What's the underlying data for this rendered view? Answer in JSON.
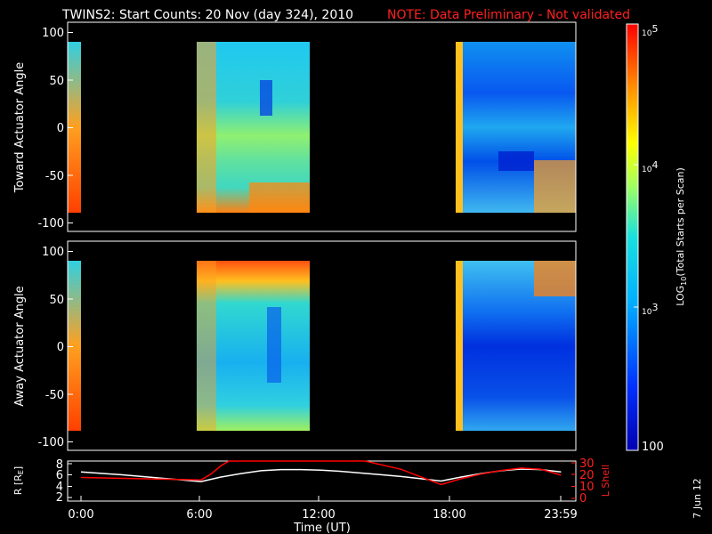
{
  "title": "TWINS2: Start Counts: 20 Nov (day 324), 2010",
  "note": "NOTE: Data Preliminary - Not validated",
  "date_stamp": "7 Jun 12",
  "chart_data": [
    {
      "name": "top-panel",
      "type": "heatmap",
      "ylabel": "Toward Actuator Angle",
      "ylim": [
        -110,
        110
      ],
      "yticks": [
        "100",
        "50",
        "0",
        "-50",
        "-100"
      ],
      "ytick_values": [
        100,
        50,
        0,
        -50,
        -100
      ],
      "angle_range": [
        -90,
        90
      ],
      "data_intervals_hours": [
        [
          0.0,
          0.03
        ],
        [
          6.0,
          11.8
        ],
        [
          18.0,
          24.0
        ]
      ],
      "colors": {
        "low": "#0000d0",
        "mid": "#18d8d8",
        "high": "#ff2800"
      }
    },
    {
      "name": "bottom-panel",
      "type": "heatmap",
      "ylabel": "Away Actuator Angle",
      "ylim": [
        -110,
        110
      ],
      "yticks": [
        "100",
        "50",
        "0",
        "-50",
        "-100"
      ],
      "ytick_values": [
        100,
        50,
        0,
        -50,
        -100
      ],
      "angle_range": [
        -90,
        90
      ],
      "data_intervals_hours": [
        [
          0.0,
          0.03
        ],
        [
          6.0,
          11.8
        ],
        [
          18.0,
          24.0
        ]
      ],
      "colors": {
        "low": "#0000d0",
        "mid": "#18d8d8",
        "high": "#ff2800"
      }
    },
    {
      "name": "orbit-panel",
      "type": "line",
      "ylabel_left_base": "R [R",
      "ylabel_left_sub": "E",
      "ylabel_left_end": "]",
      "ylabel_right": "L Shell",
      "yticks_left": [
        "8",
        "6",
        "4",
        "2"
      ],
      "ytick_left_values": [
        8,
        6,
        4,
        2
      ],
      "ylim_left": [
        1.5,
        8.5
      ],
      "yticks_right": [
        "30",
        "20",
        "10",
        "0"
      ],
      "ytick_right_values": [
        30,
        20,
        10,
        0
      ],
      "ylim_right": [
        -2,
        32
      ],
      "xlabel": "Time (UT)",
      "xticks": [
        "0:00",
        "6:00",
        "12:00",
        "18:00",
        "23:59"
      ],
      "xtick_values": [
        0,
        6,
        12,
        18,
        23.98
      ],
      "xlim": [
        0,
        24
      ],
      "series": [
        {
          "axis": "left",
          "color": "#ffffff",
          "x": [
            0,
            2,
            4,
            6,
            7,
            8,
            9,
            10,
            11,
            12,
            13,
            14,
            15,
            16,
            17,
            18,
            19,
            20,
            21,
            22,
            23,
            24
          ],
          "y": [
            6.6,
            6.1,
            5.5,
            4.9,
            5.7,
            6.3,
            6.8,
            7.0,
            7.0,
            6.9,
            6.7,
            6.4,
            6.1,
            5.8,
            5.4,
            5.0,
            5.7,
            6.3,
            6.8,
            7.1,
            7.0,
            6.6
          ]
        },
        {
          "axis": "right",
          "color": "#ff0000",
          "x": [
            0,
            3,
            6,
            6.5,
            7,
            7.4,
            14.2,
            16,
            18,
            19,
            20,
            21,
            22,
            23,
            24
          ],
          "y": [
            18,
            17,
            16,
            21,
            28,
            33,
            33,
            25,
            12,
            17,
            21,
            24,
            26,
            25,
            20
          ]
        }
      ]
    }
  ],
  "colorbar": {
    "label_base": "LOG",
    "label_sub": "10",
    "label_end": "(Total Starts per Scan)",
    "ticks": [
      {
        "base": "10",
        "exp": "5",
        "value": 100000
      },
      {
        "base": "10",
        "exp": "4",
        "value": 10000
      },
      {
        "base": "10",
        "exp": "3",
        "value": 1000
      },
      {
        "base": "100",
        "exp": "",
        "value": 100
      }
    ],
    "range": [
      100,
      100000
    ]
  }
}
